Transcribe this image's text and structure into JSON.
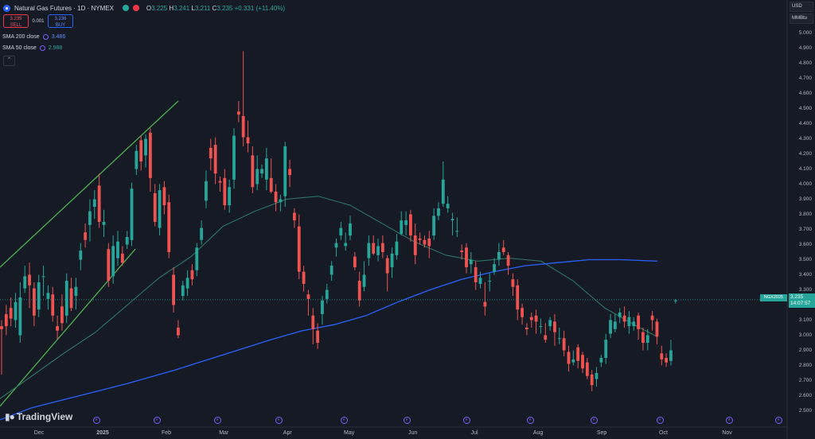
{
  "header": {
    "symbol": "Natural Gas Futures · 1D · NYMEX",
    "ohlc": {
      "o": "3.225",
      "h": "3.241",
      "l": "3.211",
      "c": "3.235",
      "change": "+0.331 (+11.40%)"
    },
    "colors": {
      "market_open": "#26a69a",
      "delayed": "#f23645"
    }
  },
  "trade": {
    "sell_price": "3.235",
    "sell_label": "SELL",
    "spread": "0.001",
    "buy_price": "3.236",
    "buy_label": "BUY"
  },
  "indicators": [
    {
      "label": "SMA 200 close",
      "value": "3.486",
      "color": "#2962ff"
    },
    {
      "label": "SMA 50 close",
      "value": "2.988",
      "color": "#26a69a"
    }
  ],
  "axis_units": {
    "currency": "USD",
    "unit": "MMBtu"
  },
  "price_tag": {
    "symbol": "NGX2025",
    "price": "3.235",
    "countdown": "14:07:57"
  },
  "brand": "TradingView",
  "colors": {
    "up": "#26a69a",
    "down": "#ef5350",
    "sma200": "#2962ff",
    "sma50": "#2f7d6a",
    "channel": "#4caf50",
    "background": "#161a25"
  },
  "chart_data": {
    "type": "candlestick",
    "y_ticks": [
      "2.500",
      "2.600",
      "2.700",
      "2.800",
      "2.900",
      "3.000",
      "3.100",
      "3.200",
      "3.300",
      "3.400",
      "3.500",
      "3.600",
      "3.700",
      "3.800",
      "3.900",
      "4.000",
      "4.100",
      "4.200",
      "4.300",
      "4.400",
      "4.500",
      "4.600",
      "4.700",
      "4.800",
      "4.900",
      "5.000"
    ],
    "ylim": [
      2.45,
      5.05
    ],
    "x_ticks": [
      "Dec",
      "2025",
      "Feb",
      "Mar",
      "Apr",
      "May",
      "Jun",
      "Jul",
      "Aug",
      "Sep",
      "Oct",
      "Nov"
    ],
    "x_tick_dates": [
      "2024-12-01",
      "2025-01-01",
      "2025-02-01",
      "2025-03-01",
      "2025-04-01",
      "2025-05-01",
      "2025-06-01",
      "2025-07-01",
      "2025-08-01",
      "2025-09-01",
      "2025-10-01",
      "2025-11-01"
    ],
    "sma200": [
      [
        0,
        2.44
      ],
      [
        40,
        2.52
      ],
      [
        100,
        2.6
      ],
      [
        160,
        2.68
      ],
      [
        220,
        2.77
      ],
      [
        280,
        2.87
      ],
      [
        340,
        2.97
      ],
      [
        380,
        3.03
      ],
      [
        420,
        3.07
      ],
      [
        460,
        3.13
      ],
      [
        500,
        3.22
      ],
      [
        540,
        3.3
      ],
      [
        580,
        3.37
      ],
      [
        620,
        3.42
      ],
      [
        660,
        3.46
      ],
      [
        700,
        3.48
      ],
      [
        740,
        3.5
      ],
      [
        780,
        3.5
      ],
      [
        826,
        3.49
      ]
    ],
    "sma50": [
      [
        0,
        2.58
      ],
      [
        40,
        2.73
      ],
      [
        80,
        2.88
      ],
      [
        120,
        3.02
      ],
      [
        160,
        3.2
      ],
      [
        200,
        3.38
      ],
      [
        240,
        3.52
      ],
      [
        280,
        3.72
      ],
      [
        320,
        3.82
      ],
      [
        360,
        3.9
      ],
      [
        400,
        3.92
      ],
      [
        440,
        3.86
      ],
      [
        480,
        3.74
      ],
      [
        520,
        3.62
      ],
      [
        560,
        3.53
      ],
      [
        600,
        3.49
      ],
      [
        640,
        3.51
      ],
      [
        680,
        3.49
      ],
      [
        720,
        3.36
      ],
      [
        760,
        3.18
      ],
      [
        800,
        3.06
      ],
      [
        826,
        2.99
      ]
    ],
    "channel_upper": [
      [
        0,
        3.45
      ],
      [
        224,
        4.55
      ]
    ],
    "channel_lower": [
      [
        0,
        2.53
      ],
      [
        170,
        3.57
      ]
    ],
    "candles": [
      [
        3.06,
        3.04,
        3.1,
        2.74
      ],
      [
        3.14,
        3.06,
        3.2,
        3.0
      ],
      [
        3.18,
        3.11,
        3.25,
        3.06
      ],
      [
        3.1,
        3.22,
        3.28,
        3.05
      ],
      [
        3.0,
        3.25,
        3.35,
        2.95
      ],
      [
        3.31,
        3.39,
        3.46,
        3.28
      ],
      [
        3.4,
        3.33,
        3.48,
        3.18
      ],
      [
        3.31,
        3.13,
        3.35,
        3.06
      ],
      [
        3.17,
        3.35,
        3.4,
        3.12
      ],
      [
        3.39,
        3.39,
        3.46,
        3.26
      ],
      [
        3.24,
        3.28,
        3.33,
        3.17
      ],
      [
        3.27,
        3.13,
        3.32,
        3.09
      ],
      [
        3.06,
        3.03,
        3.13,
        2.97
      ],
      [
        3.19,
        3.08,
        3.27,
        3.03
      ],
      [
        3.13,
        3.36,
        3.41,
        3.08
      ],
      [
        3.31,
        3.18,
        3.38,
        3.16
      ],
      [
        3.26,
        3.32,
        3.38,
        3.17
      ],
      [
        3.5,
        3.56,
        3.61,
        3.43
      ],
      [
        3.68,
        3.63,
        3.74,
        3.58
      ],
      [
        3.73,
        3.82,
        3.9,
        3.62
      ],
      [
        3.85,
        3.9,
        3.96,
        3.77
      ],
      [
        3.99,
        3.75,
        4.07,
        3.71
      ],
      [
        3.73,
        3.75,
        3.83,
        3.65
      ],
      [
        3.57,
        3.36,
        3.61,
        3.32
      ],
      [
        3.39,
        3.59,
        3.66,
        3.34
      ],
      [
        3.51,
        3.62,
        3.69,
        3.46
      ],
      [
        3.54,
        3.48,
        3.59,
        3.46
      ],
      [
        3.6,
        3.65,
        3.69,
        3.57
      ],
      [
        3.63,
        3.97,
        4.01,
        3.59
      ],
      [
        4.1,
        4.22,
        4.26,
        4.06
      ],
      [
        4.29,
        4.15,
        4.32,
        4.09
      ],
      [
        4.19,
        4.3,
        4.33,
        4.11
      ],
      [
        4.34,
        4.04,
        4.37,
        3.95
      ],
      [
        3.94,
        3.75,
        4.0,
        3.72
      ],
      [
        3.71,
        3.96,
        4.0,
        3.66
      ],
      [
        3.98,
        3.86,
        4.02,
        3.8
      ],
      [
        3.88,
        3.55,
        3.93,
        3.51
      ],
      [
        3.4,
        3.2,
        3.45,
        3.15
      ],
      [
        3.05,
        3.0,
        3.1,
        2.98
      ],
      [
        3.26,
        3.33,
        3.36,
        3.23
      ],
      [
        3.31,
        3.38,
        3.43,
        3.26
      ],
      [
        3.43,
        3.37,
        3.47,
        3.33
      ],
      [
        3.43,
        3.58,
        3.61,
        3.39
      ],
      [
        3.63,
        3.71,
        3.76,
        3.6
      ],
      [
        3.89,
        4.02,
        4.09,
        3.84
      ],
      [
        4.24,
        4.17,
        4.3,
        4.09
      ],
      [
        4.26,
        4.07,
        4.31,
        4.0
      ],
      [
        4.02,
        4.01,
        4.05,
        3.95
      ],
      [
        4.04,
        3.86,
        4.1,
        3.83
      ],
      [
        3.86,
        3.98,
        4.03,
        3.81
      ],
      [
        4.03,
        4.32,
        4.37,
        3.97
      ],
      [
        4.48,
        4.46,
        4.55,
        4.41
      ],
      [
        4.45,
        4.31,
        4.88,
        4.25
      ],
      [
        4.31,
        4.27,
        4.42,
        4.21
      ],
      [
        4.19,
        3.98,
        4.25,
        3.94
      ],
      [
        4.0,
        4.1,
        4.19,
        3.96
      ],
      [
        4.07,
        4.1,
        4.13,
        4.04
      ],
      [
        4.03,
        4.17,
        4.24,
        3.96
      ],
      [
        4.04,
        3.95,
        4.17,
        3.94
      ],
      [
        3.95,
        3.88,
        4.0,
        3.82
      ],
      [
        3.88,
        3.9,
        3.93,
        3.82
      ],
      [
        3.92,
        4.25,
        4.28,
        3.85
      ],
      [
        4.1,
        4.06,
        4.16,
        3.98
      ],
      [
        3.81,
        3.76,
        3.84,
        3.71
      ],
      [
        3.72,
        3.42,
        3.8,
        3.37
      ],
      [
        3.42,
        3.34,
        3.46,
        3.29
      ],
      [
        3.27,
        3.24,
        3.3,
        3.13
      ],
      [
        3.13,
        3.04,
        3.18,
        2.94
      ],
      [
        3.03,
        2.95,
        3.08,
        2.91
      ],
      [
        3.14,
        3.23,
        3.26,
        3.07
      ],
      [
        3.24,
        3.3,
        3.34,
        3.21
      ],
      [
        3.4,
        3.46,
        3.49,
        3.36
      ],
      [
        3.58,
        3.61,
        3.64,
        3.52
      ],
      [
        3.66,
        3.71,
        3.75,
        3.63
      ],
      [
        3.59,
        3.61,
        3.68,
        3.56
      ],
      [
        3.66,
        3.74,
        3.79,
        3.63
      ],
      [
        3.52,
        3.45,
        3.55,
        3.43
      ],
      [
        3.36,
        3.23,
        3.42,
        3.19
      ],
      [
        3.32,
        3.4,
        3.49,
        3.29
      ],
      [
        3.51,
        3.61,
        3.66,
        3.46
      ],
      [
        3.61,
        3.54,
        3.66,
        3.53
      ],
      [
        3.53,
        3.59,
        3.64,
        3.49
      ],
      [
        3.61,
        3.55,
        3.66,
        3.51
      ],
      [
        3.51,
        3.41,
        3.53,
        3.29
      ],
      [
        3.45,
        3.54,
        3.58,
        3.38
      ],
      [
        3.53,
        3.62,
        3.67,
        3.5
      ],
      [
        3.67,
        3.76,
        3.82,
        3.66
      ],
      [
        3.73,
        3.76,
        3.82,
        3.66
      ],
      [
        3.8,
        3.66,
        3.83,
        3.62
      ],
      [
        3.66,
        3.53,
        3.74,
        3.47
      ],
      [
        3.64,
        3.63,
        3.68,
        3.6
      ],
      [
        3.63,
        3.6,
        3.66,
        3.58
      ],
      [
        3.64,
        3.59,
        3.69,
        3.51
      ],
      [
        3.66,
        3.79,
        3.84,
        3.63
      ],
      [
        3.79,
        3.84,
        3.88,
        3.76
      ],
      [
        3.87,
        4.03,
        4.15,
        3.85
      ],
      [
        3.84,
        3.87,
        3.92,
        3.81
      ],
      [
        3.76,
        3.77,
        3.81,
        3.66
      ],
      [
        3.69,
        3.69,
        3.78,
        3.65
      ],
      [
        3.56,
        3.55,
        3.6,
        3.5
      ],
      [
        3.58,
        3.45,
        3.61,
        3.41
      ],
      [
        3.47,
        3.5,
        3.55,
        3.41
      ],
      [
        3.45,
        3.35,
        3.49,
        3.3
      ],
      [
        3.34,
        3.38,
        3.42,
        3.31
      ],
      [
        3.22,
        3.19,
        3.35,
        3.13
      ],
      [
        3.36,
        3.36,
        3.41,
        3.29
      ],
      [
        3.42,
        3.47,
        3.51,
        3.4
      ],
      [
        3.5,
        3.55,
        3.61,
        3.46
      ],
      [
        3.58,
        3.55,
        3.63,
        3.53
      ],
      [
        3.53,
        3.46,
        3.55,
        3.4
      ],
      [
        3.37,
        3.32,
        3.41,
        3.26
      ],
      [
        3.33,
        3.17,
        3.37,
        3.1
      ],
      [
        3.18,
        3.12,
        3.21,
        3.07
      ],
      [
        3.05,
        3.04,
        3.08,
        3.0
      ],
      [
        3.12,
        3.1,
        3.15,
        3.05
      ],
      [
        3.13,
        3.09,
        3.17,
        3.01
      ],
      [
        3.06,
        3.06,
        3.11,
        3.01
      ],
      [
        3.0,
        2.97,
        3.08,
        2.95
      ],
      [
        3.06,
        3.1,
        3.12,
        3.03
      ],
      [
        3.09,
        3.02,
        3.14,
        2.93
      ],
      [
        2.98,
        2.98,
        3.05,
        2.94
      ],
      [
        2.98,
        2.9,
        3.03,
        2.86
      ],
      [
        2.89,
        2.81,
        2.93,
        2.76
      ],
      [
        2.82,
        2.84,
        2.9,
        2.8
      ],
      [
        2.92,
        2.83,
        2.94,
        2.78
      ],
      [
        2.87,
        2.78,
        2.89,
        2.75
      ],
      [
        2.82,
        2.73,
        2.85,
        2.71
      ],
      [
        2.74,
        2.67,
        2.77,
        2.63
      ],
      [
        2.71,
        2.75,
        2.79,
        2.66
      ],
      [
        2.82,
        2.85,
        2.87,
        2.79
      ],
      [
        2.85,
        2.97,
        3.01,
        2.81
      ],
      [
        3.01,
        3.1,
        3.14,
        2.98
      ],
      [
        3.04,
        3.09,
        3.14,
        3.02
      ],
      [
        3.12,
        3.15,
        3.18,
        3.08
      ],
      [
        3.13,
        3.09,
        3.19,
        3.05
      ],
      [
        3.06,
        3.12,
        3.16,
        3.01
      ],
      [
        3.06,
        3.09,
        3.12,
        3.03
      ],
      [
        3.13,
        3.04,
        3.15,
        2.97
      ],
      [
        3.02,
        2.95,
        3.05,
        2.9
      ],
      [
        2.95,
        3.0,
        3.04,
        2.9
      ],
      [
        3.13,
        3.1,
        3.16,
        3.03
      ],
      [
        3.09,
        2.99,
        3.11,
        2.94
      ],
      [
        2.88,
        2.84,
        2.93,
        2.8
      ],
      [
        2.85,
        2.82,
        2.88,
        2.79
      ],
      [
        2.83,
        2.9,
        2.97,
        2.8
      ],
      [
        3.23,
        3.23,
        3.24,
        3.21
      ]
    ]
  }
}
